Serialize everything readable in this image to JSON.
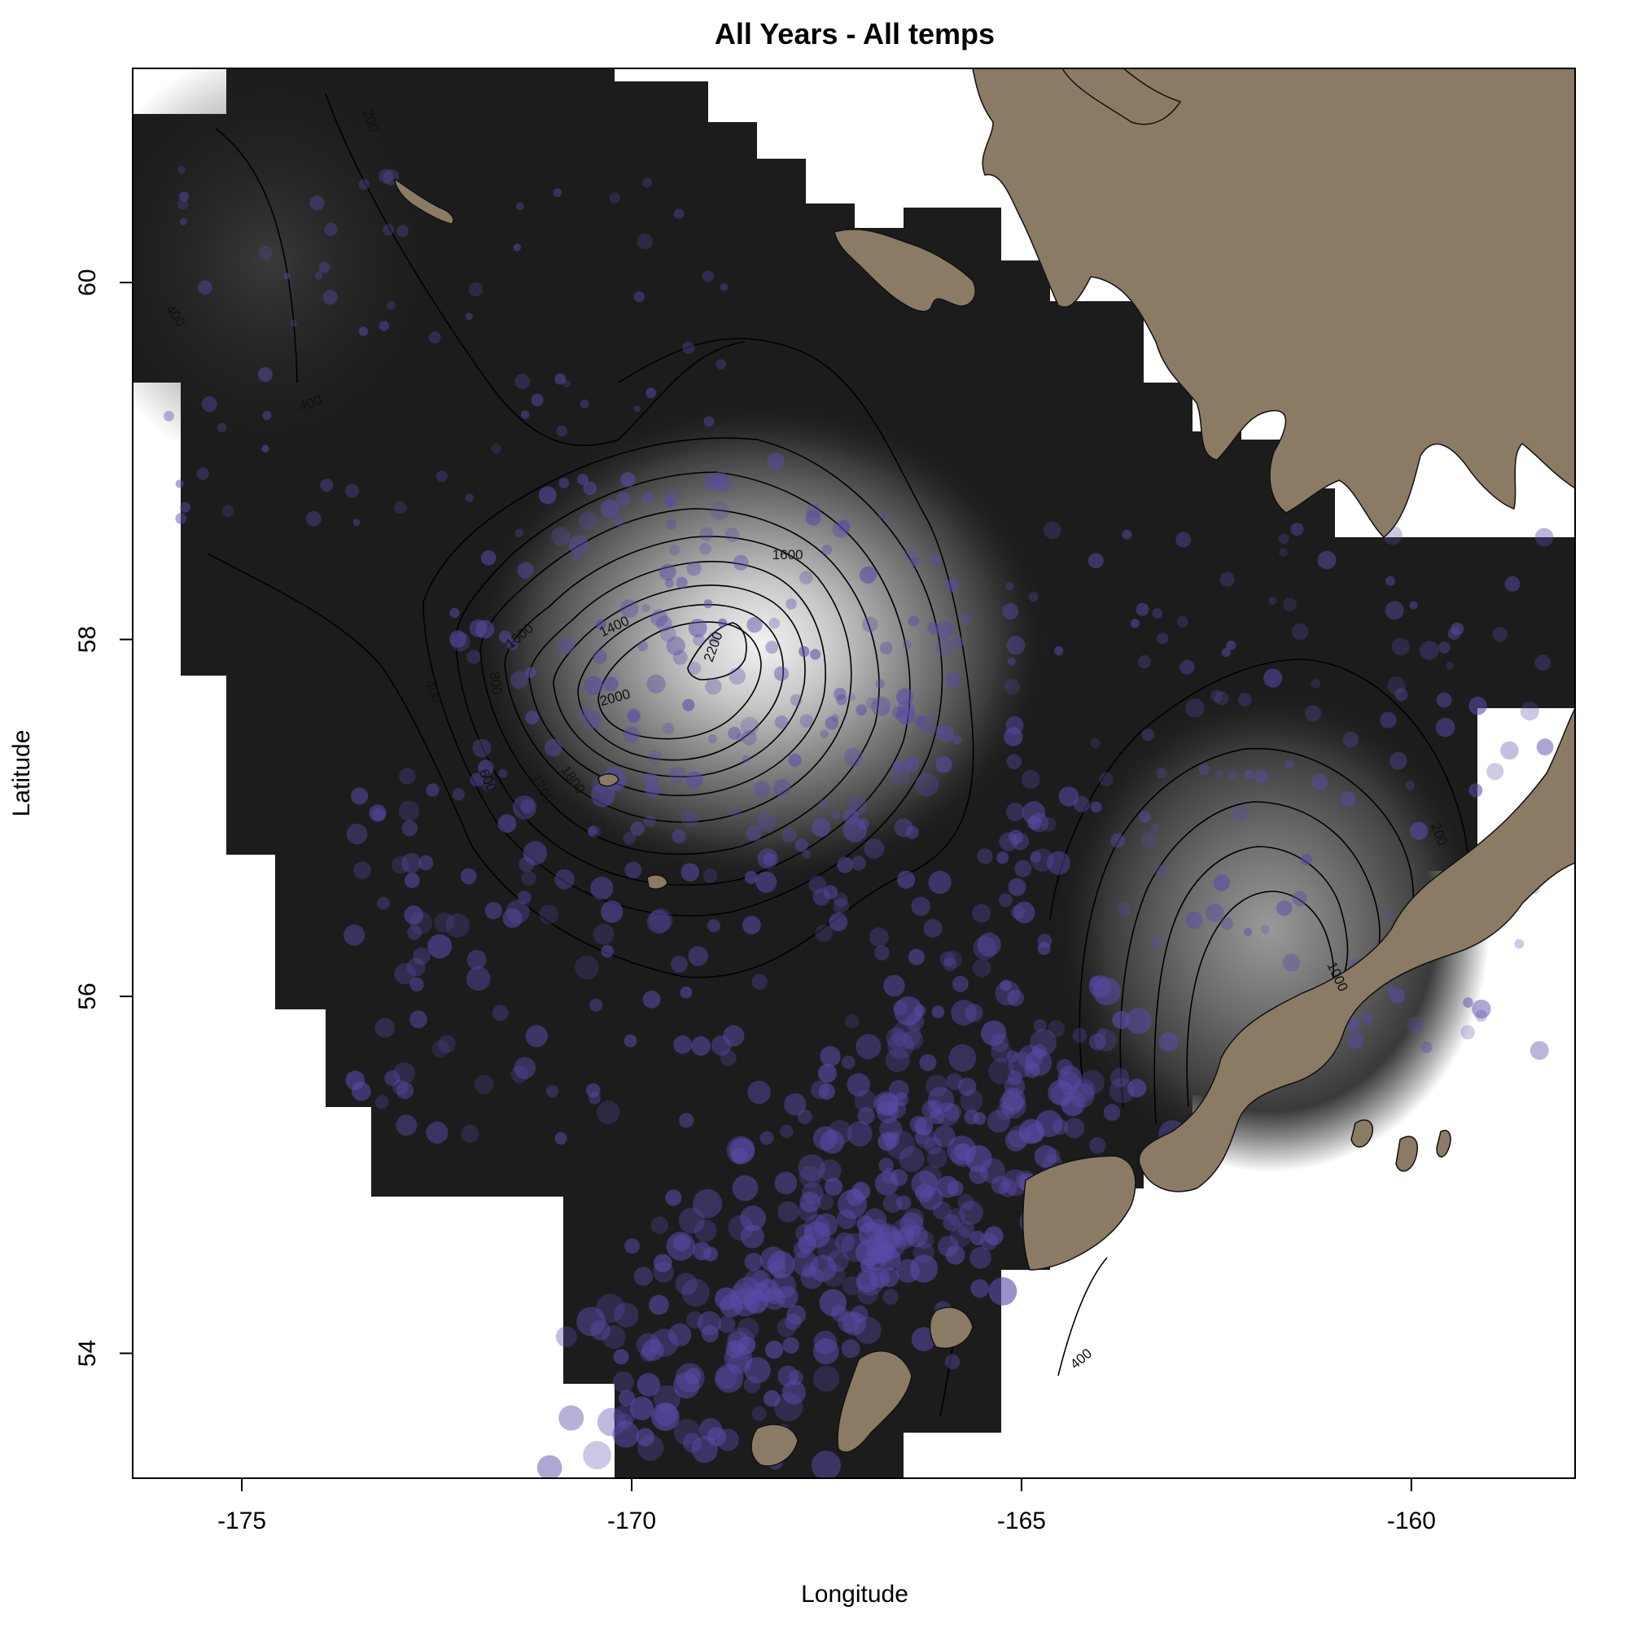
{
  "chart_data": {
    "type": "map",
    "title": "All Years - All temps",
    "xlabel": "Longitude",
    "ylabel": "Latitude",
    "xlim": [
      -176.4,
      -157.9
    ],
    "ylim": [
      53.3,
      61.2
    ],
    "x_ticks": [
      -175,
      -170,
      -165,
      -160
    ],
    "x_tick_labels": [
      "-175",
      "-170",
      "-165",
      "-160"
    ],
    "y_ticks": [
      54,
      56,
      58,
      60
    ],
    "y_tick_labels": [
      "54",
      "56",
      "58",
      "60"
    ],
    "contour_levels": [
      200,
      400,
      600,
      800,
      1000,
      1200,
      1400,
      1600,
      1800,
      2000,
      2200
    ],
    "contour_labels": [
      {
        "text": "200",
        "lon": -173.4,
        "lat": 60.9,
        "angle": 70
      },
      {
        "text": "400",
        "lon": -175.9,
        "lat": 59.8,
        "angle": 55
      },
      {
        "text": "400",
        "lon": -174.1,
        "lat": 59.3,
        "angle": -20
      },
      {
        "text": "400",
        "lon": -172.6,
        "lat": 57.7,
        "angle": 70
      },
      {
        "text": "600",
        "lon": -171.9,
        "lat": 57.2,
        "angle": 65
      },
      {
        "text": "800",
        "lon": -171.8,
        "lat": 57.75,
        "angle": 80
      },
      {
        "text": "1000",
        "lon": -171.4,
        "lat": 58.0,
        "angle": -40
      },
      {
        "text": "1200",
        "lon": -171.2,
        "lat": 57.15,
        "angle": 60
      },
      {
        "text": "1400",
        "lon": -170.2,
        "lat": 58.05,
        "angle": -25
      },
      {
        "text": "1600",
        "lon": -168.0,
        "lat": 58.45,
        "angle": 0
      },
      {
        "text": "1800",
        "lon": -170.8,
        "lat": 57.2,
        "angle": 55
      },
      {
        "text": "2000",
        "lon": -170.2,
        "lat": 57.65,
        "angle": -15
      },
      {
        "text": "2200",
        "lon": -168.9,
        "lat": 57.95,
        "angle": -70
      },
      {
        "text": "200",
        "lon": -159.7,
        "lat": 56.9,
        "angle": 70
      },
      {
        "text": "1000",
        "lon": -161.0,
        "lat": 56.1,
        "angle": 65
      },
      {
        "text": "400",
        "lon": -164.2,
        "lat": 53.95,
        "angle": -40
      }
    ],
    "density_peaks": [
      {
        "lon": -168.7,
        "lat": 57.85,
        "value": 2200
      },
      {
        "lon": -161.6,
        "lat": 56.05,
        "value": 1000
      }
    ],
    "point_color": "#5a4aa8",
    "raster_dark_color": "#1c1c1c",
    "raster_light_color": "#f2f2f2",
    "land_color": "#8b7b65"
  }
}
